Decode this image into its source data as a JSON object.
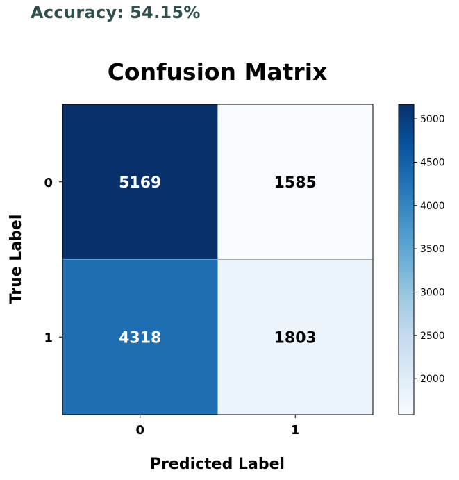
{
  "accuracy_text": "Accuracy: 54.15%",
  "chart_data": {
    "type": "heatmap",
    "title": "Confusion Matrix",
    "xlabel": "Predicted Label",
    "ylabel": "True Label",
    "x_categories": [
      "0",
      "1"
    ],
    "y_categories": [
      "0",
      "1"
    ],
    "values": [
      [
        5169,
        1585
      ],
      [
        4318,
        1803
      ]
    ],
    "colormap": "Blues",
    "colorbar": {
      "range": [
        1585,
        5169
      ],
      "ticks": [
        2000,
        2500,
        3000,
        3500,
        4000,
        4500,
        5000
      ]
    },
    "colors": {
      "gradient": [
        "#f7fbff",
        "#deebf7",
        "#c6dbef",
        "#9ecae1",
        "#6baed6",
        "#4292c6",
        "#2171b5",
        "#08519c",
        "#08306b"
      ],
      "text_dark": "#000000",
      "text_light": "#ffffff"
    }
  }
}
